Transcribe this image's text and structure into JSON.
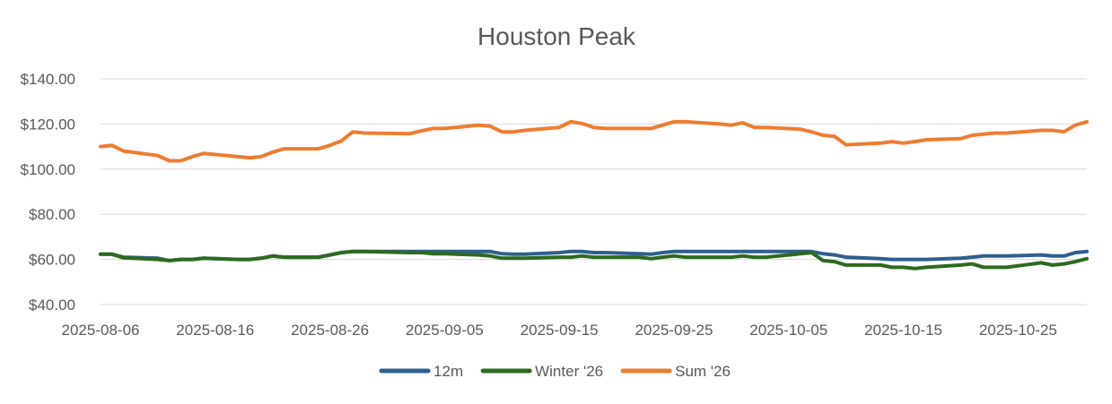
{
  "chart_data": {
    "type": "line",
    "title": "Houston Peak",
    "xlabel": "",
    "ylabel": "",
    "ylim": [
      40,
      140
    ],
    "y_ticks": [
      40,
      60,
      80,
      100,
      120,
      140
    ],
    "y_tick_labels": [
      "$40.00",
      "$60.00",
      "$80.00",
      "$100.00",
      "$120.00",
      "$140.00"
    ],
    "x_range": [
      "2025-08-06",
      "2025-10-31"
    ],
    "x_tick_labels": [
      "2025-08-06",
      "2025-08-16",
      "2025-08-26",
      "2025-09-05",
      "2025-09-15",
      "2025-09-25",
      "2025-10-05",
      "2025-10-15",
      "2025-10-25"
    ],
    "grid": true,
    "legend_position": "bottom",
    "series": [
      {
        "name": "12m",
        "color": "#2e5f8c",
        "points": [
          [
            "2025-08-06",
            62.3
          ],
          [
            "2025-08-07",
            62.3
          ],
          [
            "2025-08-08",
            61.0
          ],
          [
            "2025-08-11",
            60.5
          ],
          [
            "2025-08-12",
            59.5
          ],
          [
            "2025-08-13",
            60.0
          ],
          [
            "2025-08-14",
            60.0
          ],
          [
            "2025-08-15",
            60.5
          ],
          [
            "2025-08-18",
            60.0
          ],
          [
            "2025-08-19",
            60.0
          ],
          [
            "2025-08-20",
            60.5
          ],
          [
            "2025-08-21",
            61.5
          ],
          [
            "2025-08-22",
            61.0
          ],
          [
            "2025-08-25",
            61.0
          ],
          [
            "2025-08-26",
            62.0
          ],
          [
            "2025-08-27",
            63.0
          ],
          [
            "2025-08-28",
            63.5
          ],
          [
            "2025-08-29",
            63.5
          ],
          [
            "2025-09-02",
            63.5
          ],
          [
            "2025-09-03",
            63.5
          ],
          [
            "2025-09-04",
            63.5
          ],
          [
            "2025-09-05",
            63.5
          ],
          [
            "2025-09-08",
            63.5
          ],
          [
            "2025-09-09",
            63.5
          ],
          [
            "2025-09-10",
            62.5
          ],
          [
            "2025-09-11",
            62.3
          ],
          [
            "2025-09-12",
            62.3
          ],
          [
            "2025-09-15",
            63.0
          ],
          [
            "2025-09-16",
            63.5
          ],
          [
            "2025-09-17",
            63.5
          ],
          [
            "2025-09-18",
            63.0
          ],
          [
            "2025-09-19",
            63.0
          ],
          [
            "2025-09-22",
            62.5
          ],
          [
            "2025-09-23",
            62.3
          ],
          [
            "2025-09-24",
            63.0
          ],
          [
            "2025-09-25",
            63.5
          ],
          [
            "2025-09-26",
            63.5
          ],
          [
            "2025-09-29",
            63.5
          ],
          [
            "2025-09-30",
            63.5
          ],
          [
            "2025-10-01",
            63.5
          ],
          [
            "2025-10-02",
            63.5
          ],
          [
            "2025-10-03",
            63.5
          ],
          [
            "2025-10-06",
            63.5
          ],
          [
            "2025-10-07",
            63.5
          ],
          [
            "2025-10-08",
            62.5
          ],
          [
            "2025-10-09",
            62.0
          ],
          [
            "2025-10-10",
            61.0
          ],
          [
            "2025-10-13",
            60.3
          ],
          [
            "2025-10-14",
            60.0
          ],
          [
            "2025-10-15",
            60.0
          ],
          [
            "2025-10-16",
            60.0
          ],
          [
            "2025-10-17",
            60.0
          ],
          [
            "2025-10-20",
            60.5
          ],
          [
            "2025-10-21",
            61.0
          ],
          [
            "2025-10-22",
            61.5
          ],
          [
            "2025-10-23",
            61.5
          ],
          [
            "2025-10-24",
            61.5
          ],
          [
            "2025-10-27",
            62.0
          ],
          [
            "2025-10-28",
            61.5
          ],
          [
            "2025-10-29",
            61.5
          ],
          [
            "2025-10-30",
            63.0
          ],
          [
            "2025-10-31",
            63.5
          ]
        ]
      },
      {
        "name": "Winter '26",
        "color": "#2d6a1e",
        "points": [
          [
            "2025-08-06",
            62.3
          ],
          [
            "2025-08-07",
            62.3
          ],
          [
            "2025-08-08",
            60.7
          ],
          [
            "2025-08-11",
            60.0
          ],
          [
            "2025-08-12",
            59.5
          ],
          [
            "2025-08-13",
            60.0
          ],
          [
            "2025-08-14",
            60.0
          ],
          [
            "2025-08-15",
            60.5
          ],
          [
            "2025-08-18",
            60.0
          ],
          [
            "2025-08-19",
            60.0
          ],
          [
            "2025-08-20",
            60.5
          ],
          [
            "2025-08-21",
            61.5
          ],
          [
            "2025-08-22",
            61.0
          ],
          [
            "2025-08-25",
            61.0
          ],
          [
            "2025-08-26",
            62.0
          ],
          [
            "2025-08-27",
            63.0
          ],
          [
            "2025-08-28",
            63.5
          ],
          [
            "2025-08-29",
            63.5
          ],
          [
            "2025-09-02",
            63.0
          ],
          [
            "2025-09-03",
            63.0
          ],
          [
            "2025-09-04",
            62.5
          ],
          [
            "2025-09-05",
            62.5
          ],
          [
            "2025-09-08",
            62.0
          ],
          [
            "2025-09-09",
            61.5
          ],
          [
            "2025-09-10",
            60.5
          ],
          [
            "2025-09-11",
            60.5
          ],
          [
            "2025-09-12",
            60.5
          ],
          [
            "2025-09-15",
            61.0
          ],
          [
            "2025-09-16",
            61.0
          ],
          [
            "2025-09-17",
            61.5
          ],
          [
            "2025-09-18",
            61.0
          ],
          [
            "2025-09-19",
            61.0
          ],
          [
            "2025-09-22",
            61.0
          ],
          [
            "2025-09-23",
            60.3
          ],
          [
            "2025-09-24",
            61.0
          ],
          [
            "2025-09-25",
            61.5
          ],
          [
            "2025-09-26",
            61.0
          ],
          [
            "2025-09-29",
            61.0
          ],
          [
            "2025-09-30",
            61.0
          ],
          [
            "2025-10-01",
            61.5
          ],
          [
            "2025-10-02",
            61.0
          ],
          [
            "2025-10-03",
            61.0
          ],
          [
            "2025-10-06",
            62.5
          ],
          [
            "2025-10-07",
            63.0
          ],
          [
            "2025-10-08",
            59.5
          ],
          [
            "2025-10-09",
            59.0
          ],
          [
            "2025-10-10",
            57.5
          ],
          [
            "2025-10-13",
            57.5
          ],
          [
            "2025-10-14",
            56.5
          ],
          [
            "2025-10-15",
            56.5
          ],
          [
            "2025-10-16",
            56.0
          ],
          [
            "2025-10-17",
            56.5
          ],
          [
            "2025-10-20",
            57.5
          ],
          [
            "2025-10-21",
            58.0
          ],
          [
            "2025-10-22",
            56.5
          ],
          [
            "2025-10-23",
            56.5
          ],
          [
            "2025-10-24",
            56.5
          ],
          [
            "2025-10-27",
            58.5
          ],
          [
            "2025-10-28",
            57.5
          ],
          [
            "2025-10-29",
            58.0
          ],
          [
            "2025-10-30",
            59.0
          ],
          [
            "2025-10-31",
            60.3
          ]
        ]
      },
      {
        "name": "Sum '26",
        "color": "#ed7d31",
        "points": [
          [
            "2025-08-06",
            110.0
          ],
          [
            "2025-08-07",
            110.5
          ],
          [
            "2025-08-08",
            108.0
          ],
          [
            "2025-08-11",
            106.0
          ],
          [
            "2025-08-12",
            103.7
          ],
          [
            "2025-08-13",
            103.7
          ],
          [
            "2025-08-14",
            105.5
          ],
          [
            "2025-08-15",
            107.0
          ],
          [
            "2025-08-18",
            105.5
          ],
          [
            "2025-08-19",
            105.0
          ],
          [
            "2025-08-20",
            105.5
          ],
          [
            "2025-08-21",
            107.5
          ],
          [
            "2025-08-22",
            109.0
          ],
          [
            "2025-08-25",
            109.0
          ],
          [
            "2025-08-26",
            110.5
          ],
          [
            "2025-08-27",
            112.5
          ],
          [
            "2025-08-28",
            116.5
          ],
          [
            "2025-08-29",
            116.0
          ],
          [
            "2025-09-02",
            115.7
          ],
          [
            "2025-09-03",
            117.0
          ],
          [
            "2025-09-04",
            118.0
          ],
          [
            "2025-09-05",
            118.0
          ],
          [
            "2025-09-08",
            119.5
          ],
          [
            "2025-09-09",
            119.0
          ],
          [
            "2025-09-10",
            116.5
          ],
          [
            "2025-09-11",
            116.5
          ],
          [
            "2025-09-12",
            117.2
          ],
          [
            "2025-09-15",
            118.5
          ],
          [
            "2025-09-16",
            121.0
          ],
          [
            "2025-09-17",
            120.2
          ],
          [
            "2025-09-18",
            118.5
          ],
          [
            "2025-09-19",
            118.0
          ],
          [
            "2025-09-22",
            118.0
          ],
          [
            "2025-09-23",
            118.0
          ],
          [
            "2025-09-24",
            119.5
          ],
          [
            "2025-09-25",
            121.0
          ],
          [
            "2025-09-26",
            121.0
          ],
          [
            "2025-09-29",
            120.0
          ],
          [
            "2025-09-30",
            119.5
          ],
          [
            "2025-10-01",
            120.5
          ],
          [
            "2025-10-02",
            118.5
          ],
          [
            "2025-10-03",
            118.5
          ],
          [
            "2025-10-06",
            117.7
          ],
          [
            "2025-10-07",
            116.5
          ],
          [
            "2025-10-08",
            115.0
          ],
          [
            "2025-10-09",
            114.5
          ],
          [
            "2025-10-10",
            110.8
          ],
          [
            "2025-10-13",
            111.5
          ],
          [
            "2025-10-14",
            112.2
          ],
          [
            "2025-10-15",
            111.5
          ],
          [
            "2025-10-16",
            112.2
          ],
          [
            "2025-10-17",
            113.0
          ],
          [
            "2025-10-20",
            113.5
          ],
          [
            "2025-10-21",
            115.0
          ],
          [
            "2025-10-22",
            115.5
          ],
          [
            "2025-10-23",
            116.0
          ],
          [
            "2025-10-24",
            116.0
          ],
          [
            "2025-10-27",
            117.2
          ],
          [
            "2025-10-28",
            117.2
          ],
          [
            "2025-10-29",
            116.5
          ],
          [
            "2025-10-30",
            119.5
          ],
          [
            "2025-10-31",
            121.0
          ]
        ]
      }
    ]
  }
}
